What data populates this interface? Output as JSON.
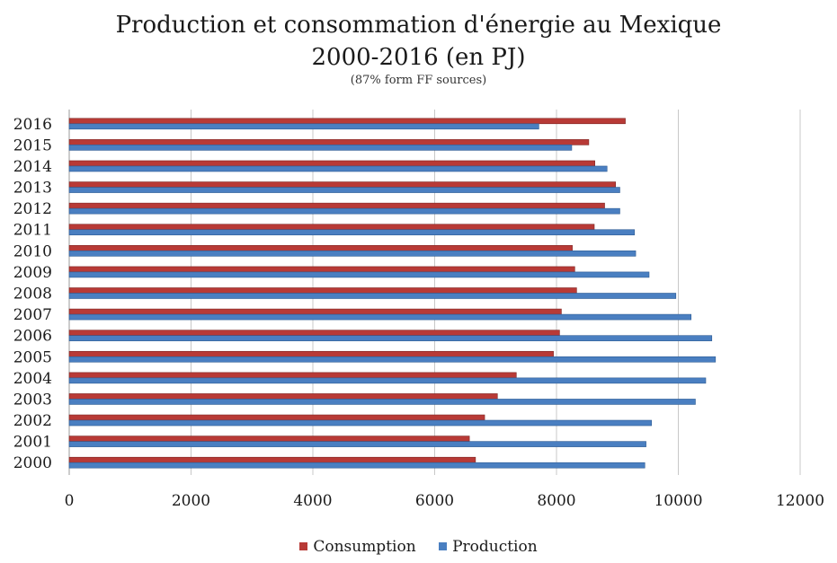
{
  "chart_data": {
    "type": "bar",
    "orientation": "horizontal",
    "title": "Production et consommation d'énergie au Mexique",
    "title_line2": "2000-2016 (en PJ)",
    "subtitle": "(87% form FF sources)",
    "xlabel": "",
    "ylabel": "",
    "xlim": [
      0,
      12000
    ],
    "xticks": [
      0,
      2000,
      4000,
      6000,
      8000,
      10000,
      12000
    ],
    "grid": true,
    "legend_position": "bottom",
    "categories": [
      "2000",
      "2001",
      "2002",
      "2003",
      "2004",
      "2005",
      "2006",
      "2007",
      "2008",
      "2009",
      "2010",
      "2011",
      "2012",
      "2013",
      "2014",
      "2015",
      "2016"
    ],
    "series": [
      {
        "name": "Consumption",
        "color": "#b83a36",
        "values": [
          6670,
          6570,
          6820,
          7030,
          7340,
          7950,
          8050,
          8080,
          8330,
          8300,
          8260,
          8620,
          8790,
          8970,
          8630,
          8530,
          9130
        ]
      },
      {
        "name": "Production",
        "color": "#4a7fc1",
        "values": [
          9450,
          9470,
          9560,
          10280,
          10450,
          10610,
          10550,
          10210,
          9960,
          9520,
          9300,
          9280,
          9040,
          9040,
          8830,
          8250,
          7710
        ]
      }
    ]
  }
}
